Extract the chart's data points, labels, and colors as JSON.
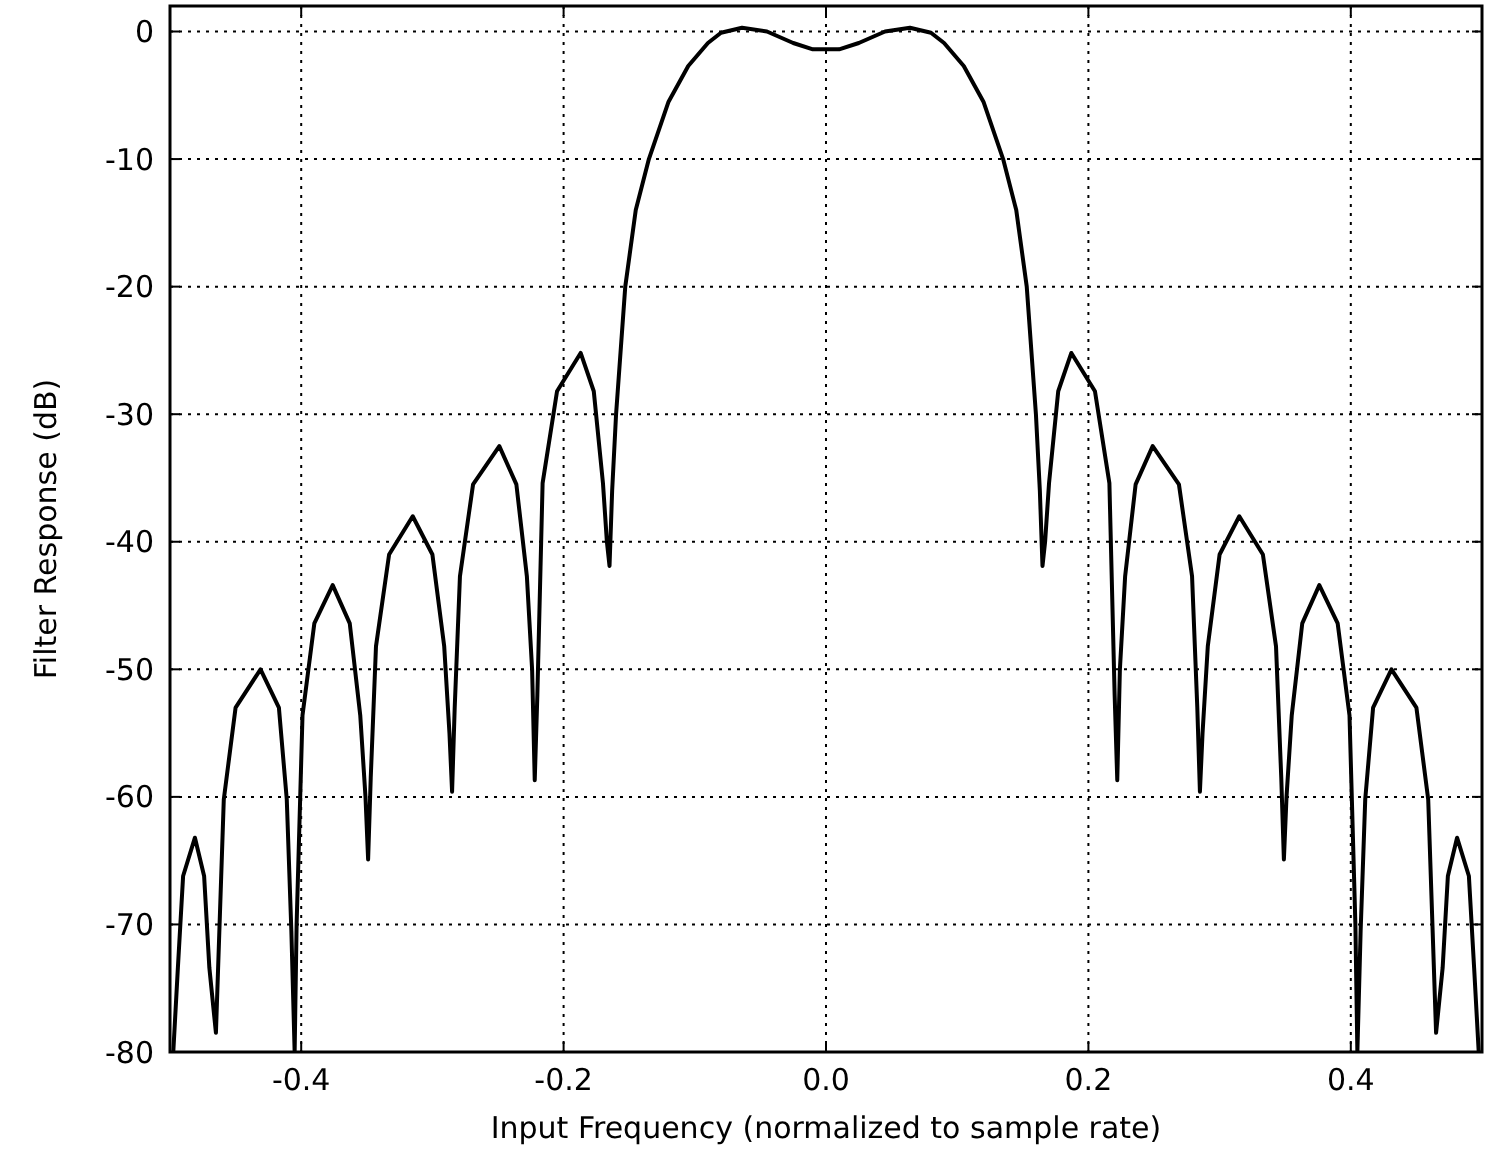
{
  "chart_data": {
    "type": "line",
    "xlabel": "Input Frequency (normalized to sample rate)",
    "ylabel": "Filter Response (dB)",
    "xlim": [
      -0.5,
      0.5
    ],
    "ylim": [
      -80,
      2
    ],
    "xticks": [
      -0.4,
      -0.2,
      {
        "value": 0,
        "label": "0.0"
      },
      0.2,
      0.4
    ],
    "yticks": [
      0,
      -10,
      -20,
      -30,
      -40,
      -50,
      -60,
      -70,
      -80
    ],
    "grid": true,
    "line_style": "solid",
    "marker": "none",
    "series": [
      {
        "color": "#000000",
        "x": [
          -0.4975,
          -0.494,
          -0.49,
          -0.481,
          -0.474,
          -0.47,
          -0.465,
          -0.459,
          -0.45,
          -0.431,
          -0.417,
          -0.411,
          -0.4075,
          -0.405,
          -0.4035,
          -0.399,
          -0.39,
          -0.376,
          -0.363,
          -0.355,
          -0.351,
          -0.349,
          -0.347,
          -0.343,
          -0.333,
          -0.315,
          -0.3,
          -0.291,
          -0.287,
          -0.285,
          -0.283,
          -0.279,
          -0.269,
          -0.249,
          -0.236,
          -0.228,
          -0.224,
          -0.222,
          -0.22,
          -0.216,
          -0.205,
          -0.187,
          -0.177,
          -0.17,
          -0.167,
          -0.165,
          -0.163,
          -0.16,
          -0.153,
          -0.145,
          -0.135,
          -0.12,
          -0.105,
          -0.09,
          -0.08,
          -0.064,
          -0.045,
          -0.025,
          -0.01,
          0,
          0.01,
          0.025,
          0.045,
          0.064,
          0.08,
          0.09,
          0.105,
          0.12,
          0.135,
          0.145,
          0.153,
          0.16,
          0.163,
          0.165,
          0.167,
          0.17,
          0.177,
          0.187,
          0.205,
          0.216,
          0.22,
          0.222,
          0.224,
          0.228,
          0.236,
          0.249,
          0.269,
          0.279,
          0.283,
          0.285,
          0.287,
          0.291,
          0.3,
          0.315,
          0.333,
          0.343,
          0.347,
          0.349,
          0.351,
          0.355,
          0.363,
          0.376,
          0.39,
          0.399,
          0.4035,
          0.405,
          0.4075,
          0.411,
          0.417,
          0.431,
          0.45,
          0.459,
          0.465,
          0.47,
          0.474,
          0.481,
          0.49,
          0.494,
          0.4975
        ],
        "values": [
          -80,
          -73.4,
          -66.2,
          -63.2,
          -66.2,
          -73.4,
          -78.5,
          -60.2,
          -53,
          -50,
          -53,
          -60.2,
          -70.5,
          -80,
          -70,
          -53.6,
          -46.4,
          -43.4,
          -46.4,
          -53.6,
          -60,
          -64.9,
          -58.5,
          -48.2,
          -41,
          -38,
          -41,
          -48.2,
          -55,
          -59.6,
          -53,
          -42.7,
          -35.5,
          -32.5,
          -35.5,
          -42.7,
          -50,
          -58.7,
          -52,
          -35.4,
          -28.2,
          -25.2,
          -28.2,
          -35.4,
          -40,
          -41.9,
          -36,
          -30,
          -20,
          -14,
          -10,
          -5.5,
          -2.7,
          -0.9,
          -0.1,
          0.3,
          0,
          -0.9,
          -1.4,
          -1.4,
          -1.4,
          -0.9,
          0,
          0.3,
          -0.1,
          -0.9,
          -2.7,
          -5.5,
          -10,
          -14,
          -20,
          -30,
          -36,
          -41.9,
          -40,
          -35.4,
          -28.2,
          -25.2,
          -28.2,
          -35.4,
          -52,
          -58.7,
          -50,
          -42.7,
          -35.5,
          -32.5,
          -35.5,
          -42.7,
          -53,
          -59.6,
          -55,
          -48.2,
          -41,
          -38,
          -41,
          -48.2,
          -58.5,
          -64.9,
          -60,
          -53.6,
          -46.4,
          -43.4,
          -46.4,
          -53.6,
          -70,
          -80,
          -70.5,
          -60.2,
          -53,
          -50,
          -53,
          -60.2,
          -78.5,
          -73.4,
          -66.2,
          -63.2,
          -66.2,
          -73.4,
          -80
        ]
      }
    ]
  }
}
